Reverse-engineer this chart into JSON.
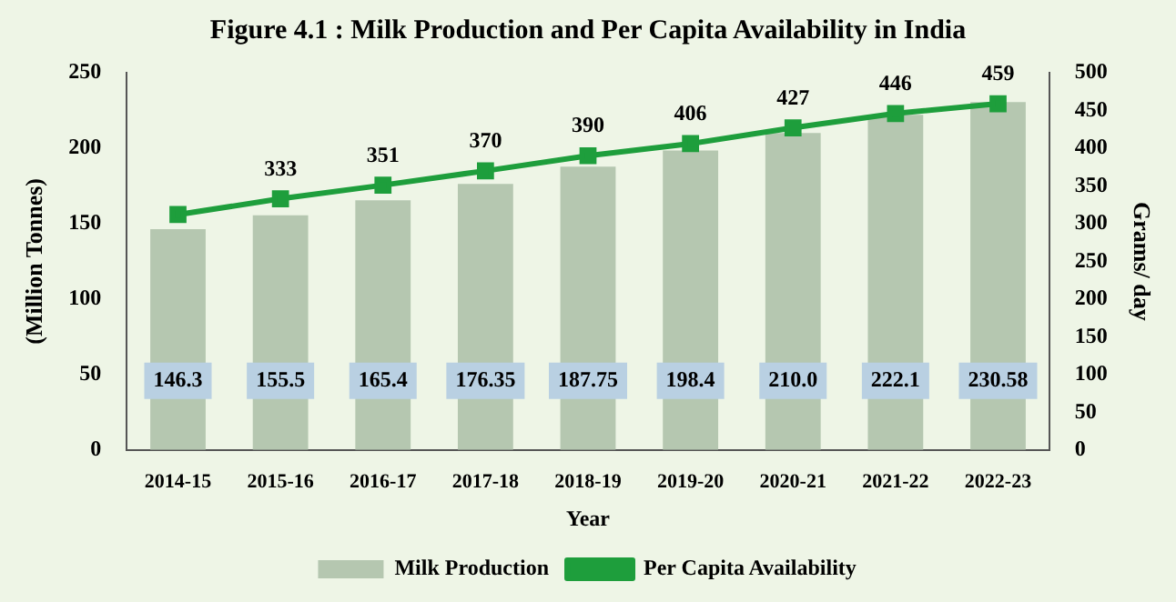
{
  "chart_data": {
    "type": "bar",
    "title": "Figure 4.1 : Milk Production and Per Capita Availability in India",
    "xlabel": "Year",
    "ylabel": "(Million Tonnes)",
    "y2label": "Grams/ day",
    "categories": [
      "2014-15",
      "2015-16",
      "2016-17",
      "2017-18",
      "2018-19",
      "2019-20",
      "2020-21",
      "2021-22",
      "2022-23"
    ],
    "series": [
      {
        "name": "Milk Production",
        "color": "#b5c7b0",
        "values": [
          146.3,
          155.5,
          165.4,
          176.35,
          187.75,
          198.4,
          210.0,
          222.1,
          230.58
        ],
        "value_labels": [
          "146.3",
          "155.5",
          "165.4",
          "176.35",
          "187.75",
          "198.4",
          "210.0",
          "222.1",
          "230.58"
        ]
      },
      {
        "name": "Per Capita Availability",
        "type": "line",
        "axis": "y2",
        "color": "#1e9e3c",
        "values": [
          312,
          333,
          351,
          370,
          390,
          406,
          427,
          446,
          459
        ],
        "value_labels": [
          null,
          "333",
          "351",
          "370",
          "390",
          "406",
          "427",
          "446",
          "459"
        ]
      }
    ],
    "ylim": [
      0,
      250
    ],
    "yticks": [
      0,
      50,
      100,
      150,
      200,
      250
    ],
    "y2lim": [
      0,
      500
    ],
    "y2ticks": [
      0,
      50,
      100,
      150,
      200,
      250,
      300,
      350,
      400,
      450,
      500
    ],
    "legend": "bottom",
    "marker": "square",
    "grid": false
  }
}
